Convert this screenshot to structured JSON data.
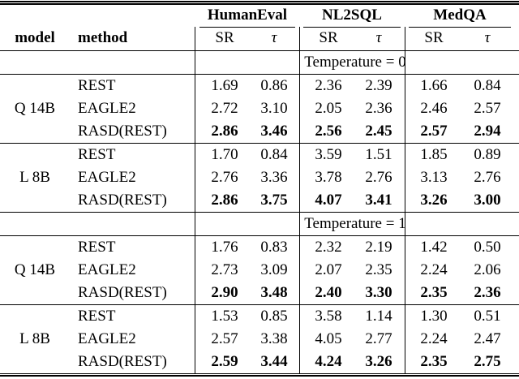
{
  "header": {
    "datasets": [
      "HumanEval",
      "NL2SQL",
      "MedQA"
    ],
    "model_label": "model",
    "method_label": "method",
    "metric_sr": "SR",
    "metric_tau": "τ"
  },
  "sections": [
    {
      "title": "Temperature = 0",
      "groups": [
        {
          "model": "Q 14B",
          "rows": [
            {
              "method": "REST",
              "values": [
                "1.69",
                "0.86",
                "2.36",
                "2.39",
                "1.66",
                "0.84"
              ]
            },
            {
              "method": "EAGLE2",
              "values": [
                "2.72",
                "3.10",
                "2.05",
                "2.36",
                "2.46",
                "2.57"
              ]
            },
            {
              "method": "RASD(REST)",
              "values": [
                "2.86",
                "3.46",
                "2.56",
                "2.45",
                "2.57",
                "2.94"
              ],
              "bold": true
            }
          ]
        },
        {
          "model": "L 8B",
          "rows": [
            {
              "method": "REST",
              "values": [
                "1.70",
                "0.84",
                "3.59",
                "1.51",
                "1.85",
                "0.89"
              ]
            },
            {
              "method": "EAGLE2",
              "values": [
                "2.76",
                "3.36",
                "3.78",
                "2.76",
                "3.13",
                "2.76"
              ]
            },
            {
              "method": "RASD(REST)",
              "values": [
                "2.86",
                "3.75",
                "4.07",
                "3.41",
                "3.26",
                "3.00"
              ],
              "bold": true
            }
          ]
        }
      ]
    },
    {
      "title": "Temperature = 1",
      "groups": [
        {
          "model": "Q 14B",
          "rows": [
            {
              "method": "REST",
              "values": [
                "1.76",
                "0.83",
                "2.32",
                "2.19",
                "1.42",
                "0.50"
              ]
            },
            {
              "method": "EAGLE2",
              "values": [
                "2.73",
                "3.09",
                "2.07",
                "2.35",
                "2.24",
                "2.06"
              ]
            },
            {
              "method": "RASD(REST)",
              "values": [
                "2.90",
                "3.48",
                "2.40",
                "3.30",
                "2.35",
                "2.36"
              ],
              "bold": true
            }
          ]
        },
        {
          "model": "L 8B",
          "rows": [
            {
              "method": "REST",
              "values": [
                "1.53",
                "0.85",
                "3.58",
                "1.14",
                "1.30",
                "0.51"
              ]
            },
            {
              "method": "EAGLE2",
              "values": [
                "2.57",
                "3.38",
                "4.05",
                "2.77",
                "2.24",
                "2.47"
              ]
            },
            {
              "method": "RASD(REST)",
              "values": [
                "2.59",
                "3.44",
                "4.24",
                "3.26",
                "2.35",
                "2.75"
              ],
              "bold": true
            }
          ]
        }
      ]
    }
  ]
}
